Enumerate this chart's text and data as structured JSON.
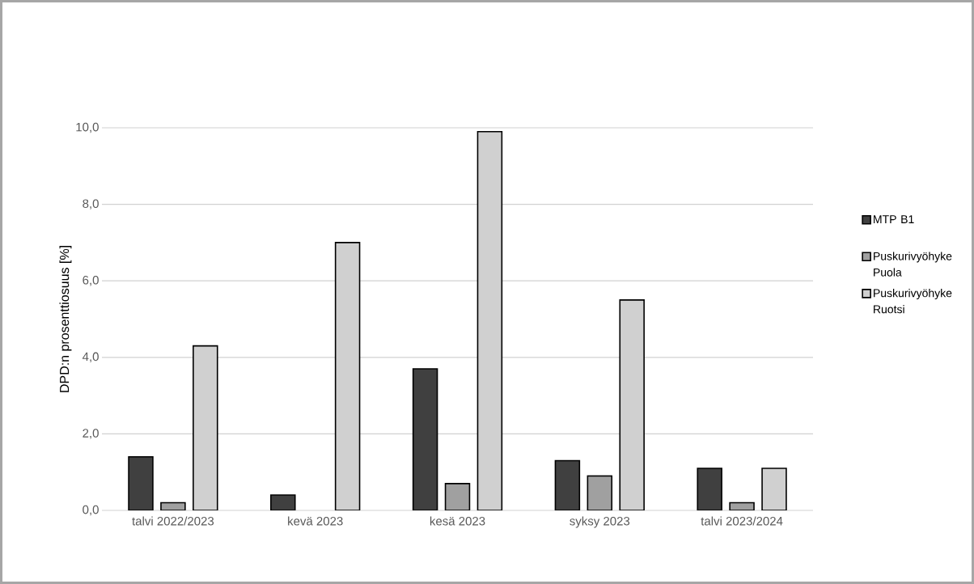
{
  "chart_data": {
    "type": "bar",
    "ylabel": "DPD:n prosenttiosuus [%]",
    "categories": [
      "talvi 2022/2023",
      "kevä 2023",
      "kesä 2023",
      "syksy 2023",
      "talvi 2023/2024"
    ],
    "series": [
      {
        "name": "MTP B1",
        "color": "#404040",
        "values": [
          1.4,
          0.4,
          3.7,
          1.3,
          1.1
        ]
      },
      {
        "name": "Puskurivyöhyke Puola",
        "color": "#a0a0a0",
        "values": [
          0.2,
          null,
          0.7,
          0.9,
          0.2
        ]
      },
      {
        "name": "Puskurivyöhyke Ruotsi",
        "color": "#d0d0d0",
        "values": [
          4.3,
          7.0,
          9.9,
          5.5,
          1.1
        ]
      }
    ],
    "ylim": [
      0,
      10
    ],
    "yticks": [
      {
        "value": 0,
        "label": "0,0"
      },
      {
        "value": 2,
        "label": "2,0"
      },
      {
        "value": 4,
        "label": "4,0"
      },
      {
        "value": 6,
        "label": "6,0"
      },
      {
        "value": 8,
        "label": "8,0"
      },
      {
        "value": 10,
        "label": "10,0"
      }
    ],
    "grid": "y",
    "legend": "right"
  }
}
